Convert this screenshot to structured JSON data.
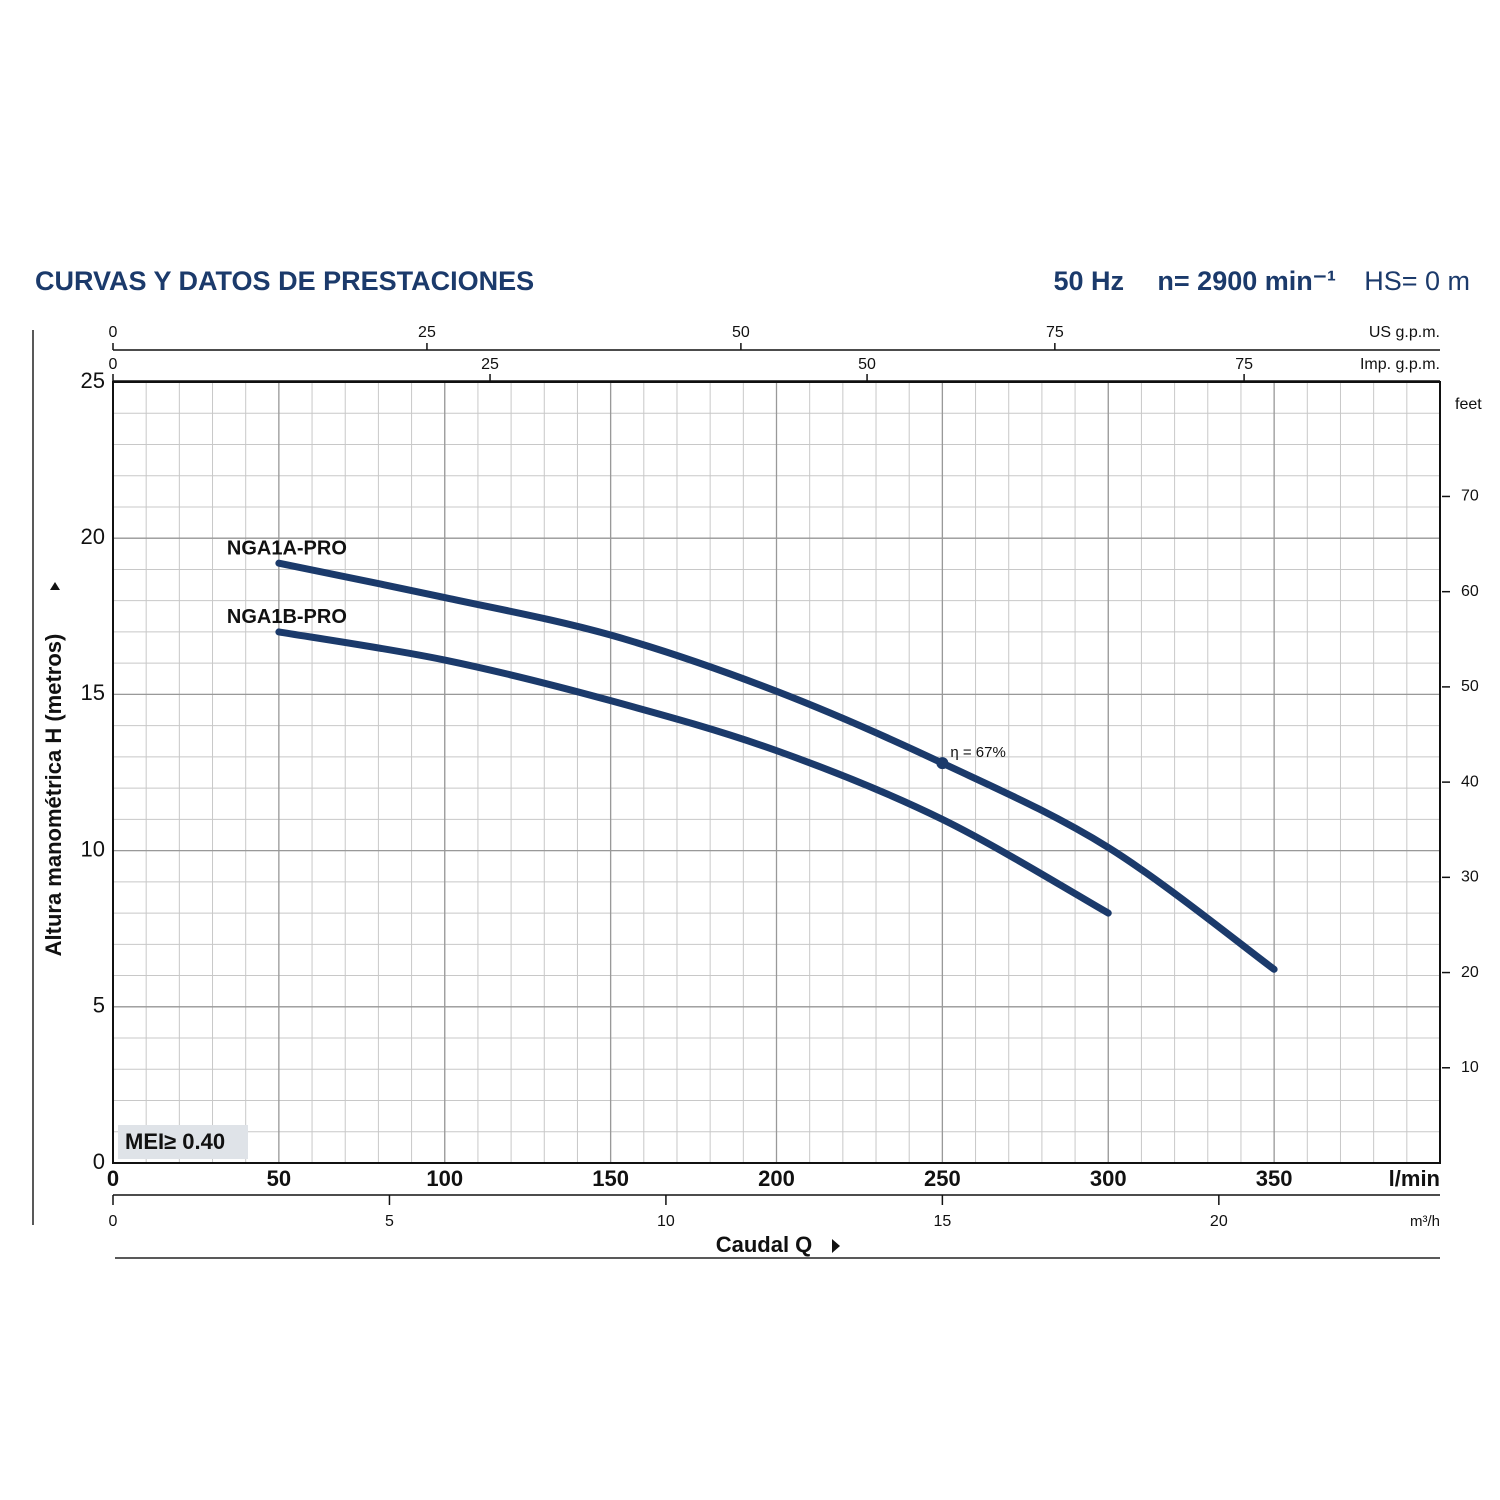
{
  "chart_data": {
    "type": "line",
    "title": "CURVAS Y DATOS DE PRESTACIONES",
    "frequency": "50 Hz",
    "speed": "n= 2900 min⁻¹",
    "suction": "HS= 0 m",
    "y_label": "Altura manométrica H (metros)",
    "x_label": "Caudal Q",
    "x_unit": "l/min",
    "badge": "MEI≥ 0.40",
    "xlim": [
      0,
      400
    ],
    "xticks": [
      0,
      50,
      100,
      150,
      200,
      250,
      300,
      350
    ],
    "ylim": [
      0,
      25
    ],
    "yticks": [
      0,
      5,
      10,
      15,
      20,
      25
    ],
    "grid": true,
    "minor_grid": {
      "x": 10,
      "y": 1
    },
    "x": [
      50,
      100,
      150,
      200,
      250,
      300,
      350
    ],
    "series": [
      {
        "name": "NGA1A-PRO",
        "color": "#1b3a6b",
        "values": [
          19.2,
          18.1,
          16.9,
          15.1,
          12.8,
          10.1,
          6.2
        ]
      },
      {
        "name": "NGA1B-PRO",
        "color": "#1b3a6b",
        "values": [
          17.0,
          16.1,
          14.8,
          13.2,
          11.0,
          8.0,
          null
        ]
      }
    ],
    "efficiency_point": {
      "x": 250,
      "y": 12.8,
      "label": "η = 67%"
    },
    "top_axes": [
      {
        "label": "US g.p.m.",
        "lim": [
          0,
          105.67
        ],
        "ticks": [
          0,
          25,
          50,
          75
        ]
      },
      {
        "label": "Imp. g.p.m.",
        "lim": [
          0,
          87.99
        ],
        "ticks": [
          0,
          25,
          50,
          75
        ]
      }
    ],
    "bottom_axis": {
      "label": "m³/h",
      "lim": [
        0,
        24
      ],
      "ticks": [
        0,
        5,
        10,
        15,
        20
      ]
    },
    "right_axis": {
      "label": "feet",
      "lim": [
        0,
        82.02
      ],
      "ticks": [
        10,
        20,
        30,
        40,
        50,
        60,
        70
      ]
    }
  }
}
